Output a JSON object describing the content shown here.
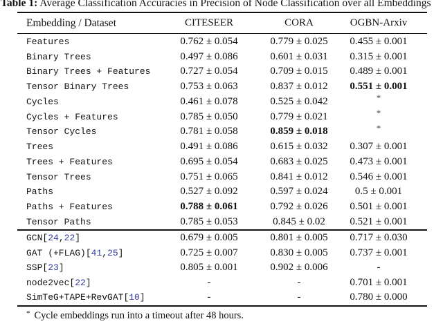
{
  "colors": {
    "citation_blue": "#2F3A9E",
    "text": "#111111"
  },
  "title": {
    "caption_label": "Table 1:",
    "text": " Average Classification Accuracies in Precision of Node Classification over all Embeddings"
  },
  "table": {
    "columns": [
      "Embedding / Dataset",
      "CITESEER",
      "CORA",
      "OGBN-Arxiv"
    ],
    "embedding_rows": [
      {
        "label": "Features",
        "values": [
          {
            "text": "0.762 ± 0.054"
          },
          {
            "text": "0.779 ± 0.025"
          },
          {
            "text": "0.455 ± 0.001"
          }
        ]
      },
      {
        "label": "Binary Trees",
        "values": [
          {
            "text": "0.497 ± 0.086"
          },
          {
            "text": "0.601 ± 0.031"
          },
          {
            "text": "0.315 ± 0.001"
          }
        ]
      },
      {
        "label": "Binary Trees + Features",
        "values": [
          {
            "text": "0.727 ± 0.054"
          },
          {
            "text": "0.709 ± 0.015"
          },
          {
            "text": "0.489 ± 0.001"
          }
        ]
      },
      {
        "label": "Tensor Binary Trees",
        "values": [
          {
            "text": "0.753 ± 0.063"
          },
          {
            "text": "0.837 ± 0.012"
          },
          {
            "text": "0.551 ± 0.001",
            "bold": true
          }
        ]
      },
      {
        "label": "Cycles",
        "values": [
          {
            "text": "0.461 ± 0.078"
          },
          {
            "text": "0.525 ± 0.042"
          },
          {
            "text": "*",
            "sup": true
          }
        ]
      },
      {
        "label": "Cycles + Features",
        "values": [
          {
            "text": "0.785 ± 0.050"
          },
          {
            "text": "0.779 ± 0.021"
          },
          {
            "text": "*",
            "sup": true
          }
        ]
      },
      {
        "label": "Tensor Cycles",
        "values": [
          {
            "text": "0.781 ± 0.058"
          },
          {
            "text": "0.859 ± 0.018",
            "bold": true
          },
          {
            "text": "*",
            "sup": true
          }
        ]
      },
      {
        "label": "Trees",
        "values": [
          {
            "text": "0.491 ± 0.086"
          },
          {
            "text": "0.615 ± 0.032"
          },
          {
            "text": "0.307 ± 0.001"
          }
        ]
      },
      {
        "label": "Trees + Features",
        "values": [
          {
            "text": "0.695 ± 0.054"
          },
          {
            "text": "0.683 ± 0.025"
          },
          {
            "text": "0.473 ± 0.001"
          }
        ]
      },
      {
        "label": "Tensor Trees",
        "values": [
          {
            "text": "0.751 ± 0.065"
          },
          {
            "text": "0.841 ± 0.012"
          },
          {
            "text": "0.546 ± 0.001"
          }
        ]
      },
      {
        "label": "Paths",
        "values": [
          {
            "text": "0.527 ± 0.092"
          },
          {
            "text": "0.597 ± 0.024"
          },
          {
            "text": "0.5 ± 0.001"
          }
        ]
      },
      {
        "label": "Paths + Features",
        "values": [
          {
            "text": "0.788 ± 0.061",
            "bold": true
          },
          {
            "text": "0.792 ± 0.026"
          },
          {
            "text": "0.501 ± 0.001"
          }
        ]
      },
      {
        "label": "Tensor Paths",
        "values": [
          {
            "text": "0.785 ± 0.053"
          },
          {
            "text": "0.845 ± 0.02"
          },
          {
            "text": "0.521 ± 0.001"
          }
        ]
      }
    ],
    "baseline_rows": [
      {
        "name": "GCN",
        "refs": [
          "24",
          "22"
        ],
        "values": [
          {
            "text": "0.679 ± 0.005"
          },
          {
            "text": "0.801 ± 0.005"
          },
          {
            "text": "0.717 ± 0.030"
          }
        ]
      },
      {
        "name": "GAT (+FLAG)",
        "refs": [
          "41",
          "25"
        ],
        "values": [
          {
            "text": "0.725 ± 0.007"
          },
          {
            "text": "0.830 ± 0.005"
          },
          {
            "text": "0.737 ± 0.001"
          }
        ]
      },
      {
        "name": "SSP",
        "refs": [
          "23"
        ],
        "values": [
          {
            "text": "0.805 ± 0.001"
          },
          {
            "text": "0.902 ± 0.006"
          },
          {
            "text": "-"
          }
        ]
      },
      {
        "name": "node2vec",
        "refs": [
          "22"
        ],
        "values": [
          {
            "text": "-"
          },
          {
            "text": "-"
          },
          {
            "text": "0.701 ± 0.001"
          }
        ]
      },
      {
        "name": "SimTeG+TAPE+RevGAT",
        "refs": [
          "10"
        ],
        "values": [
          {
            "text": "-"
          },
          {
            "text": "-"
          },
          {
            "text": "0.780 ± 0.000"
          }
        ]
      }
    ]
  },
  "footnote": {
    "marker": "*",
    "text": "Cycle embeddings run into a timeout after 48 hours."
  }
}
